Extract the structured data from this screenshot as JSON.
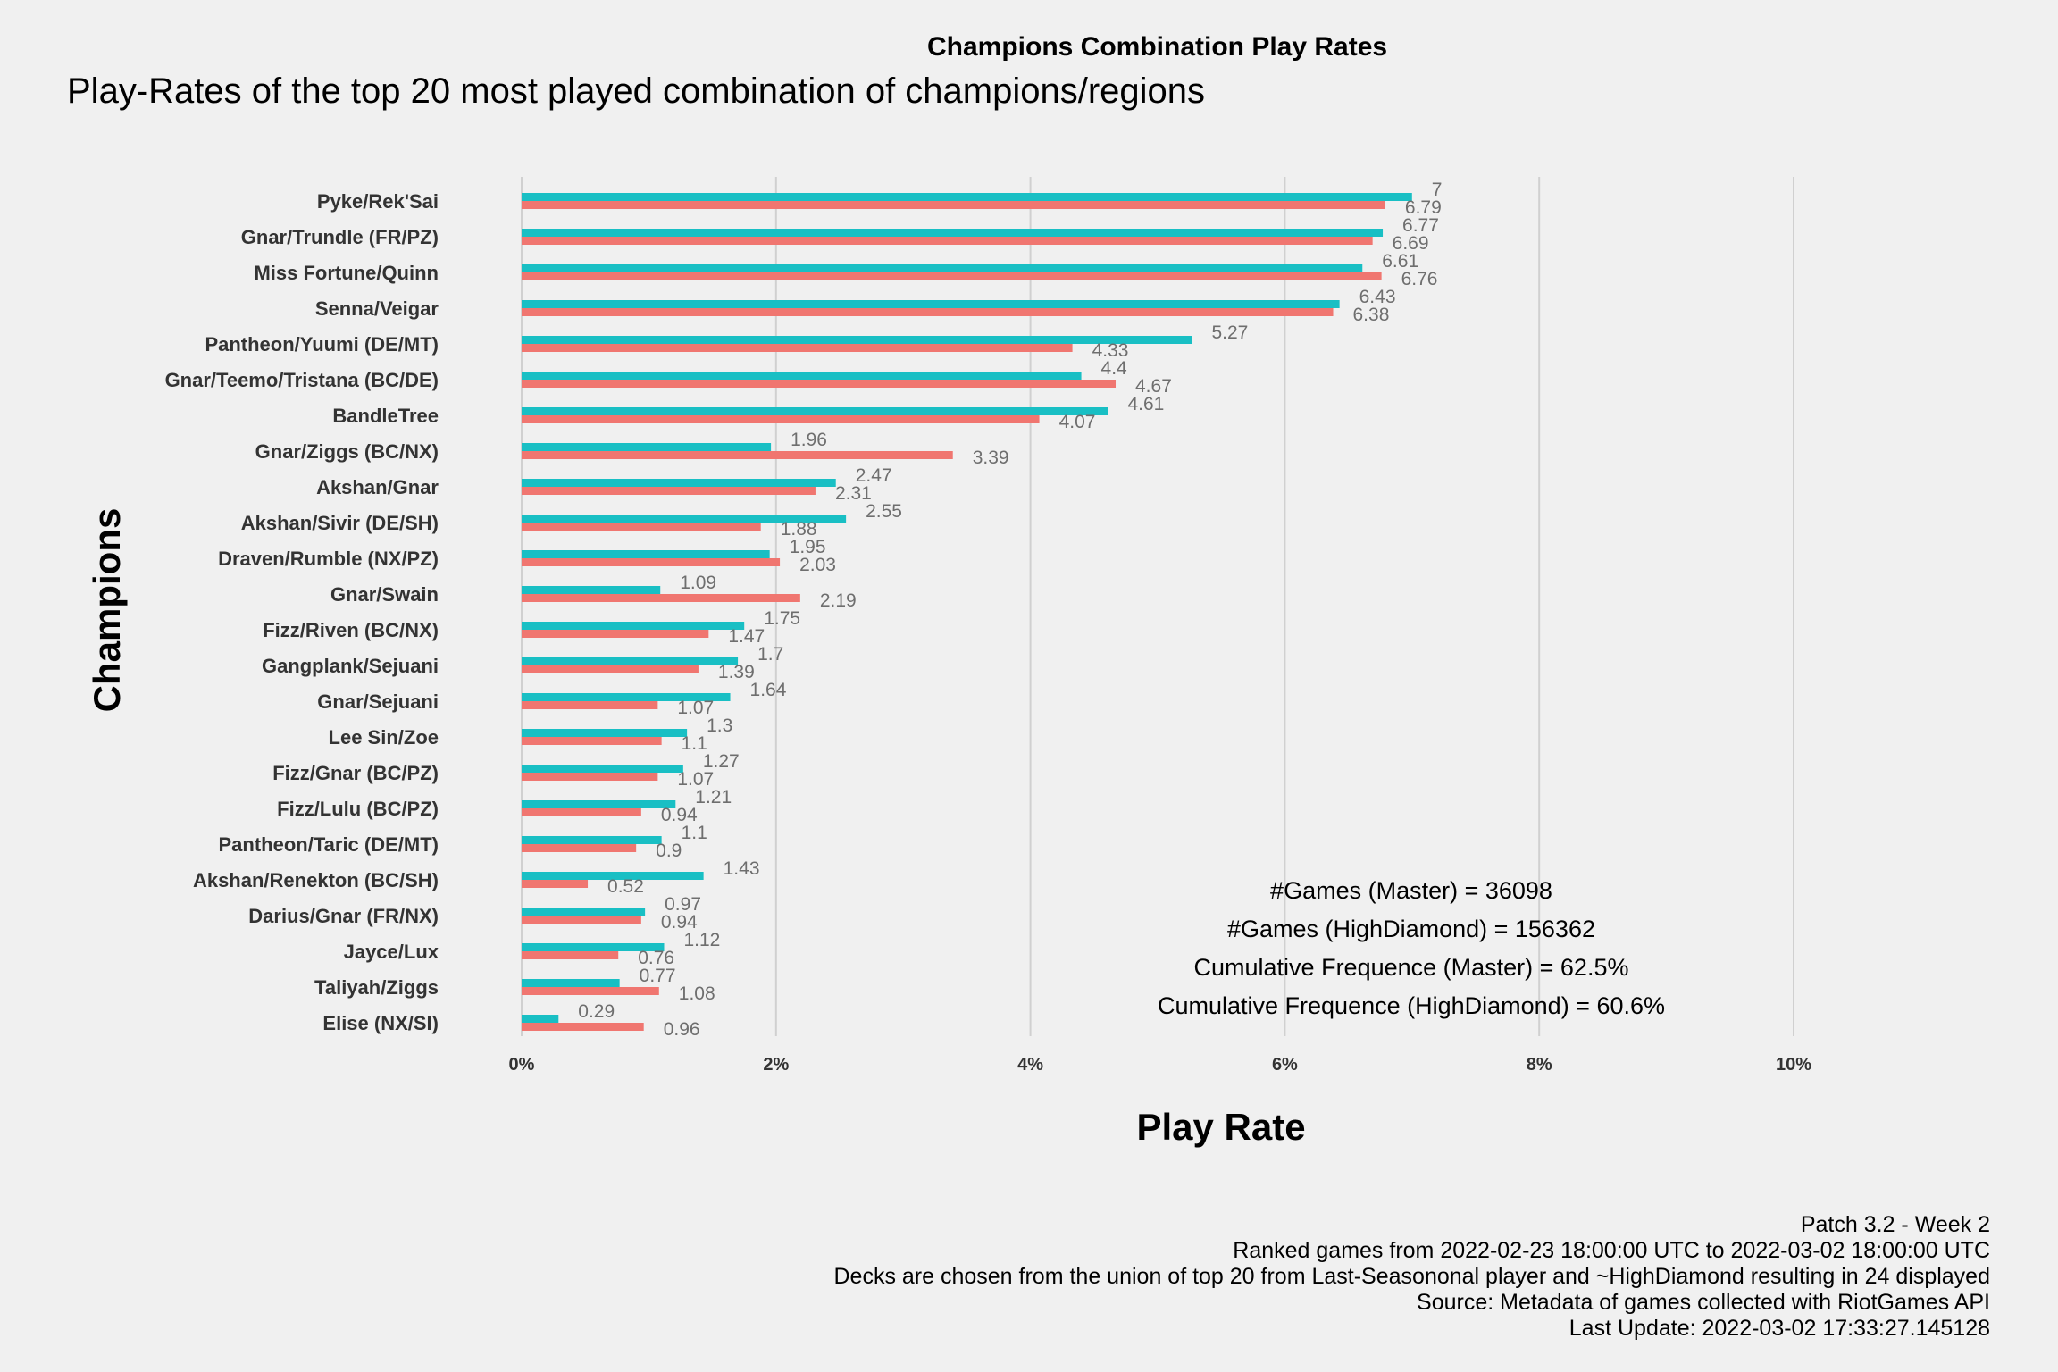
{
  "title": "Champions Combination Play Rates",
  "subtitle": "Play-Rates of the top 20 most played combination of champions/regions",
  "colors": {
    "master": "#19bfc4",
    "highdiamond": "#f07670",
    "grid": "#d0d0d0",
    "background": "#f0f0f0"
  },
  "chart_data": {
    "type": "bar",
    "orientation": "horizontal",
    "xlabel": "Play Rate",
    "ylabel": "Champions",
    "xlim": [
      0,
      10
    ],
    "x_ticks": [
      "0%",
      "2%",
      "4%",
      "6%",
      "8%",
      "10%"
    ],
    "grid": true,
    "categories": [
      "Pyke/Rek'Sai",
      "Gnar/Trundle (FR/PZ)",
      "Miss Fortune/Quinn",
      "Senna/Veigar",
      "Pantheon/Yuumi (DE/MT)",
      "Gnar/Teemo/Tristana (BC/DE)",
      "BandleTree",
      "Gnar/Ziggs (BC/NX)",
      "Akshan/Gnar",
      "Akshan/Sivir (DE/SH)",
      "Draven/Rumble (NX/PZ)",
      "Gnar/Swain",
      "Fizz/Riven (BC/NX)",
      "Gangplank/Sejuani",
      "Gnar/Sejuani",
      "Lee Sin/Zoe",
      "Fizz/Gnar (BC/PZ)",
      "Fizz/Lulu (BC/PZ)",
      "Pantheon/Taric (DE/MT)",
      "Akshan/Renekton (BC/SH)",
      "Darius/Gnar (FR/NX)",
      "Jayce/Lux",
      "Taliyah/Ziggs",
      "Elise (NX/SI)"
    ],
    "series": [
      {
        "color": "#19bfc4",
        "labels": [
          "7",
          "6.77",
          "6.61",
          "6.43",
          "5.27",
          "4.4",
          "4.61",
          "1.96",
          "2.47",
          "2.55",
          "1.95",
          "1.09",
          "1.75",
          "1.7",
          "1.64",
          "1.3",
          "1.27",
          "1.21",
          "1.1",
          "1.43",
          "0.97",
          "1.12",
          "0.77",
          "0.29"
        ],
        "values": [
          7,
          6.77,
          6.61,
          6.43,
          5.27,
          4.4,
          4.61,
          1.96,
          2.47,
          2.55,
          1.95,
          1.09,
          1.75,
          1.7,
          1.64,
          1.3,
          1.27,
          1.21,
          1.1,
          1.43,
          0.97,
          1.12,
          0.77,
          0.29
        ]
      },
      {
        "color": "#f07670",
        "labels": [
          "6.79",
          "6.69",
          "6.76",
          "6.38",
          "4.33",
          "4.67",
          "4.07",
          "3.39",
          "2.31",
          "1.88",
          "2.03",
          "2.19",
          "1.47",
          "1.39",
          "1.07",
          "1.1",
          "1.07",
          "0.94",
          "0.9",
          "0.52",
          "0.94",
          "0.76",
          "1.08",
          "0.96"
        ],
        "values": [
          6.79,
          6.69,
          6.76,
          6.38,
          4.33,
          4.67,
          4.07,
          3.39,
          2.31,
          1.88,
          2.03,
          2.19,
          1.47,
          1.39,
          1.07,
          1.1,
          1.07,
          0.94,
          0.9,
          0.52,
          0.94,
          0.76,
          1.08,
          0.96
        ]
      }
    ]
  },
  "annotations": [
    "#Games (Master) = 36098",
    "#Games (HighDiamond) = 156362",
    "Cumulative Frequence (Master) = 62.5%",
    "Cumulative Frequence (HighDiamond) = 60.6%"
  ],
  "footer": [
    "Patch 3.2 - Week 2",
    "Ranked games from 2022-02-23 18:00:00 UTC to 2022-03-02 18:00:00 UTC",
    "Decks are chosen from the union of top 20 from Last-Seasononal player and ~HighDiamond resulting in 24 displayed",
    "Source: Metadata of games collected with RiotGames API",
    "Last Update: 2022-03-02 17:33:27.145128"
  ]
}
